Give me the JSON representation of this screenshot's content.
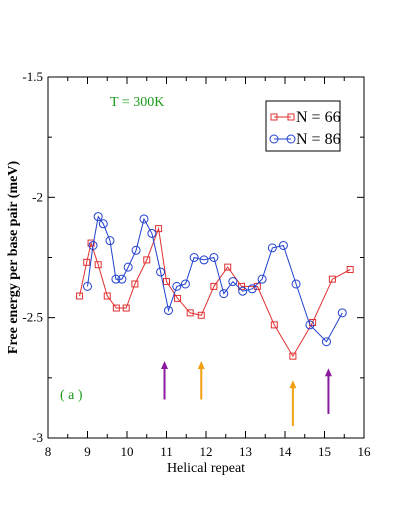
{
  "chart_data": {
    "type": "line",
    "xlabel": "Helical repeat",
    "ylabel": "Free energy per base pair (meV)",
    "xlim": [
      8,
      16
    ],
    "ylim": [
      -3,
      -1.5
    ],
    "x_ticks": [
      "8",
      "9",
      "10",
      "11",
      "12",
      "13",
      "14",
      "15",
      "16"
    ],
    "y_ticks": [
      "-3",
      "-2.5",
      "-2",
      "-1.5"
    ],
    "grid": false,
    "legend_position": "top-right",
    "series": [
      {
        "name": "N = 66",
        "color": "#e03030",
        "marker": "square",
        "x": [
          8.8,
          8.98,
          9.09,
          9.27,
          9.5,
          9.73,
          9.98,
          10.2,
          10.5,
          10.8,
          11.0,
          11.28,
          11.6,
          11.88,
          12.2,
          12.55,
          12.9,
          13.3,
          13.73,
          14.2,
          14.7,
          15.2,
          15.65
        ],
        "y": [
          -2.41,
          -2.27,
          -2.19,
          -2.28,
          -2.41,
          -2.46,
          -2.46,
          -2.36,
          -2.26,
          -2.13,
          -2.35,
          -2.42,
          -2.48,
          -2.49,
          -2.37,
          -2.29,
          -2.37,
          -2.37,
          -2.53,
          -2.66,
          -2.52,
          -2.34,
          -2.3
        ]
      },
      {
        "name": "N = 86",
        "color": "#2040d0",
        "marker": "circle",
        "x": [
          9.0,
          9.14,
          9.27,
          9.4,
          9.57,
          9.72,
          9.87,
          10.03,
          10.23,
          10.43,
          10.63,
          10.85,
          11.05,
          11.26,
          11.48,
          11.7,
          11.95,
          12.2,
          12.45,
          12.68,
          12.93,
          13.17,
          13.42,
          13.68,
          13.96,
          14.28,
          14.63,
          15.05,
          15.45
        ],
        "y": [
          -2.37,
          -2.2,
          -2.08,
          -2.11,
          -2.18,
          -2.34,
          -2.34,
          -2.29,
          -2.22,
          -2.09,
          -2.15,
          -2.31,
          -2.47,
          -2.37,
          -2.36,
          -2.25,
          -2.26,
          -2.25,
          -2.4,
          -2.35,
          -2.39,
          -2.38,
          -2.34,
          -2.21,
          -2.2,
          -2.36,
          -2.53,
          -2.6,
          -2.48
        ]
      }
    ],
    "annotations": [
      {
        "text": "T = 300K",
        "color": "#1a9a1a"
      },
      {
        "text": "( a )",
        "color": "#1a9a1a"
      }
    ],
    "arrows": [
      {
        "x": 10.95,
        "y_base": -2.84,
        "y_tip": -2.68,
        "color": "#8b1aa0"
      },
      {
        "x": 11.88,
        "y_base": -2.84,
        "y_tip": -2.68,
        "color": "#f0a010"
      },
      {
        "x": 14.2,
        "y_base": -2.95,
        "y_tip": -2.76,
        "color": "#f0a010"
      },
      {
        "x": 15.1,
        "y_base": -2.9,
        "y_tip": -2.71,
        "color": "#8b1aa0"
      }
    ]
  }
}
